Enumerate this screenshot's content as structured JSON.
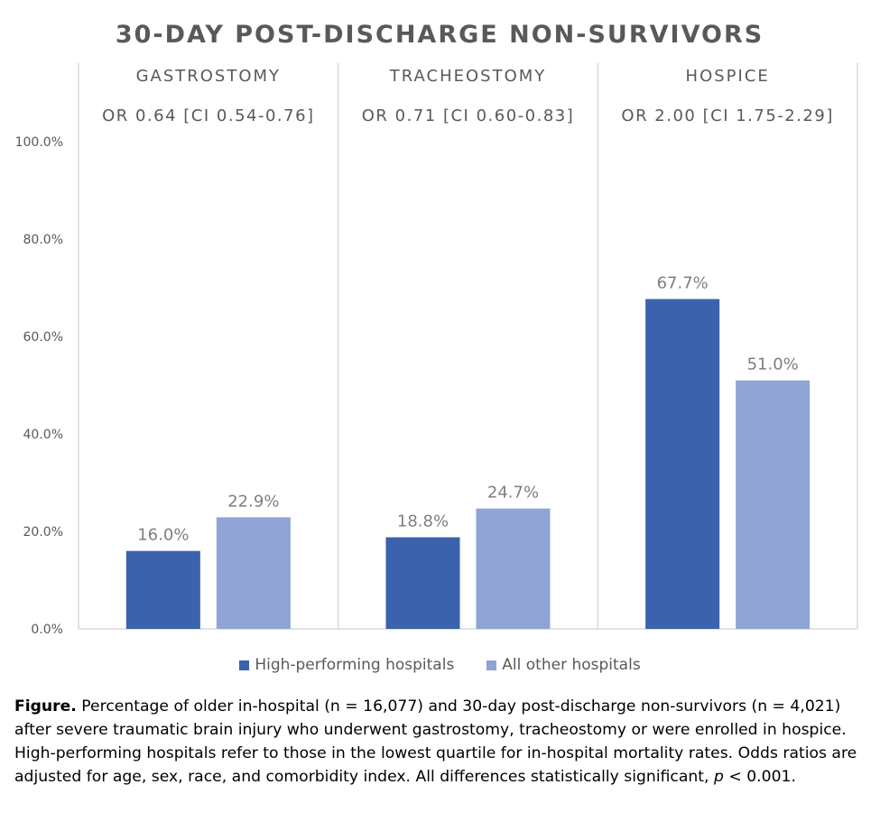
{
  "chart_data": {
    "type": "bar",
    "title": "30-DAY POST-DISCHARGE NON-SURVIVORS",
    "categories": [
      "GASTROSTOMY",
      "TRACHEOSTOMY",
      "HOSPICE"
    ],
    "odds_ratios": [
      "OR 0.64 [CI 0.54-0.76]",
      "OR 0.71 [CI 0.60-0.83]",
      "OR 2.00 [CI 1.75-2.29]"
    ],
    "series": [
      {
        "name": "High-performing hospitals",
        "color": "#3b62ad",
        "values": [
          16.0,
          18.8,
          67.7
        ],
        "labels": [
          "16.0%",
          "18.8%",
          "67.7%"
        ]
      },
      {
        "name": "All other hospitals",
        "color": "#8fa3d5",
        "values": [
          22.9,
          24.7,
          51.0
        ],
        "labels": [
          "22.9%",
          "24.7%",
          "51.0%"
        ]
      }
    ],
    "ylim": [
      0,
      100
    ],
    "yticks": [
      "0.0%",
      "20.0%",
      "40.0%",
      "60.0%",
      "80.0%",
      "100.0%"
    ],
    "xlabel": "",
    "ylabel": "",
    "grid": false,
    "legend_position": "bottom"
  },
  "caption": {
    "lead": "Figure.",
    "text_1": " Percentage of older in-hospital (n = 16,077) and 30-day post-discharge non-survivors (n = 4,021) after severe traumatic brain injury who underwent gastrostomy, tracheostomy or were enrolled in hospice. High-performing hospitals refer to those in the lowest quartile for in-hospital mortality rates.  Odds ratios are adjusted for age, sex, race, and comorbidity index. All differences statistically significant, ",
    "p": "p",
    "text_2": " < 0.001."
  }
}
